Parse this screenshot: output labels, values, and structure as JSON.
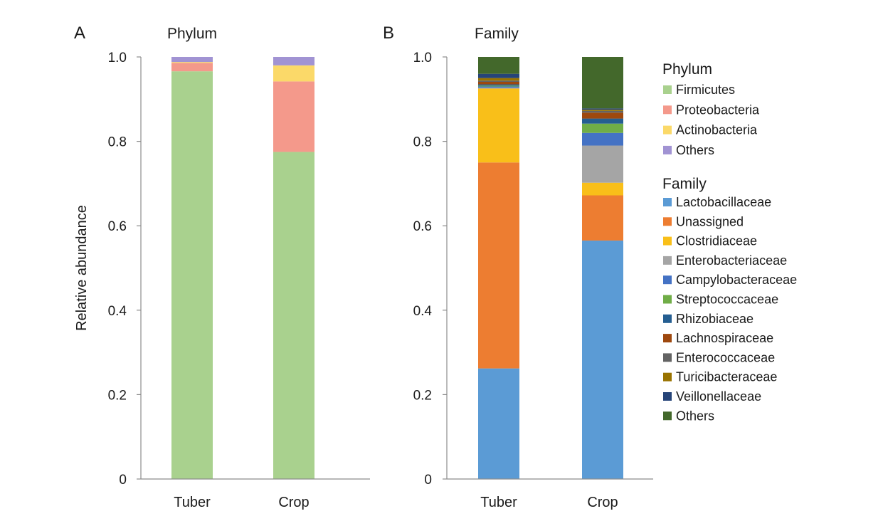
{
  "chart_data": [
    {
      "panel": "A",
      "title": "Phylum",
      "type": "bar",
      "stacked": true,
      "categories": [
        "Tuber",
        "Crop"
      ],
      "ylabel": "Relative abundance",
      "yticks": [
        "0",
        "0.2",
        "0.4",
        "0.6",
        "0.8",
        "1.0"
      ],
      "ylim": [
        0,
        1.0
      ],
      "series": [
        {
          "name": "Firmicutes",
          "color": "#a9d18e",
          "values": [
            0.966,
            0.775
          ]
        },
        {
          "name": "Proteobacteria",
          "color": "#f4998b",
          "values": [
            0.02,
            0.167
          ]
        },
        {
          "name": "Actinobacteria",
          "color": "#fbd969",
          "values": [
            0.002,
            0.038
          ]
        },
        {
          "name": "Others",
          "color": "#a193d3",
          "values": [
            0.012,
            0.02
          ]
        }
      ]
    },
    {
      "panel": "B",
      "title": "Family",
      "type": "bar",
      "stacked": true,
      "categories": [
        "Tuber",
        "Crop"
      ],
      "ylabel": "",
      "yticks": [
        "0",
        "0.2",
        "0.4",
        "0.6",
        "0.8",
        "1.0"
      ],
      "ylim": [
        0,
        1.0
      ],
      "series": [
        {
          "name": "Lactobacillaceae",
          "color": "#5b9bd5",
          "values": [
            0.262,
            0.565
          ]
        },
        {
          "name": "Unassigned",
          "color": "#ed7d31",
          "values": [
            0.488,
            0.107
          ]
        },
        {
          "name": "Clostridiaceae",
          "color": "#f9bf19",
          "values": [
            0.175,
            0.03
          ]
        },
        {
          "name": "Enterobacteriaceae",
          "color": "#a5a5a5",
          "values": [
            0.002,
            0.088
          ]
        },
        {
          "name": "Campylobacteraceae",
          "color": "#4472c4",
          "values": [
            0.003,
            0.03
          ]
        },
        {
          "name": "Streptococcaceae",
          "color": "#70ad47",
          "values": [
            0.002,
            0.022
          ]
        },
        {
          "name": "Rhizobiaceae",
          "color": "#255e91",
          "values": [
            0.003,
            0.012
          ]
        },
        {
          "name": "Lachnospiraceae",
          "color": "#9e480e",
          "values": [
            0.006,
            0.014
          ]
        },
        {
          "name": "Enterococcaceae",
          "color": "#636363",
          "values": [
            0.003,
            0.004
          ]
        },
        {
          "name": "Turicibacteraceae",
          "color": "#997300",
          "values": [
            0.006,
            0.003
          ]
        },
        {
          "name": "Veillonellaceae",
          "color": "#264478",
          "values": [
            0.01,
            0.003
          ]
        },
        {
          "name": "Others",
          "color": "#43682b",
          "values": [
            0.04,
            0.122
          ]
        }
      ]
    }
  ],
  "legend": {
    "phylum_heading": "Phylum",
    "family_heading": "Family"
  }
}
